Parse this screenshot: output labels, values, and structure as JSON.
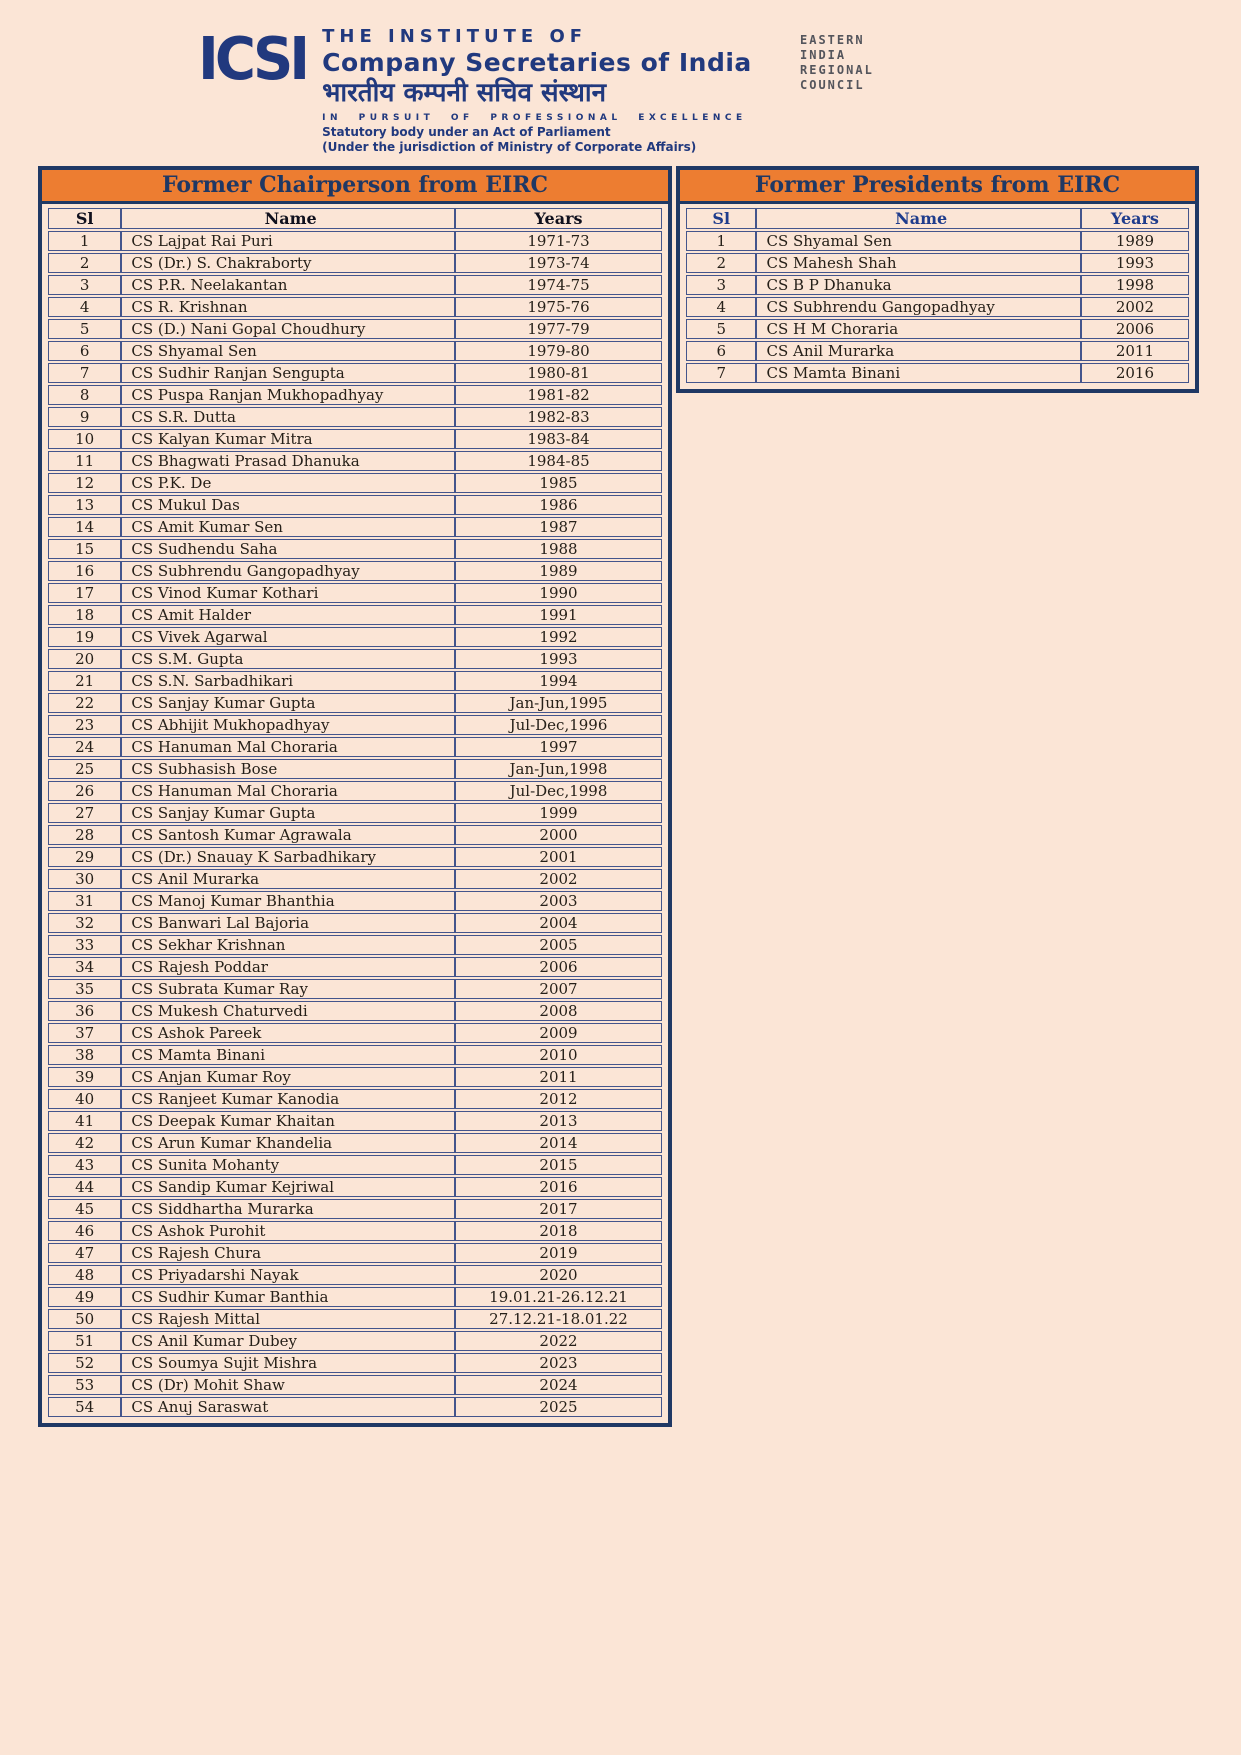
{
  "colors": {
    "page_bg": "#FBE5D6",
    "header_orange": "#ED7D31",
    "navy_border": "#1F3864",
    "cell_border": "#44558C",
    "cell_text": "#262019",
    "council_gray": "#54555C",
    "right_header_blue": "#1F3C8C"
  },
  "header": {
    "logo_text": "ICSI",
    "org_line1": "THE INSTITUTE OF",
    "org_line2": "Company Secretaries of India",
    "org_line3": "भारतीय कम्पनी सचिव संस्थान",
    "motto": "IN PURSUIT OF PROFESSIONAL EXCELLENCE",
    "statutory_line": "Statutory body under an Act of Parliament",
    "jurisdiction_line": "(Under the jurisdiction of Ministry of Corporate Affairs)",
    "council_line1": "EASTERN",
    "council_line2": "INDIA",
    "council_line3": "REGIONAL",
    "council_line4": "COUNCIL"
  },
  "tables": {
    "chairpersons": {
      "title": "Former Chairperson from EIRC",
      "columns": [
        "Sl",
        "Name",
        "Years"
      ],
      "rows": [
        [
          "1",
          "CS Lajpat Rai Puri",
          "1971-73"
        ],
        [
          "2",
          "CS (Dr.) S. Chakraborty",
          "1973-74"
        ],
        [
          "3",
          "CS P.R. Neelakantan",
          "1974-75"
        ],
        [
          "4",
          "CS R. Krishnan",
          "1975-76"
        ],
        [
          "5",
          "CS (D.) Nani Gopal Choudhury",
          "1977-79"
        ],
        [
          "6",
          "CS Shyamal Sen",
          "1979-80"
        ],
        [
          "7",
          "CS Sudhir Ranjan Sengupta",
          "1980-81"
        ],
        [
          "8",
          "CS Puspa Ranjan Mukhopadhyay",
          "1981-82"
        ],
        [
          "9",
          "CS S.R. Dutta",
          "1982-83"
        ],
        [
          "10",
          "CS Kalyan Kumar Mitra",
          "1983-84"
        ],
        [
          "11",
          "CS Bhagwati Prasad Dhanuka",
          "1984-85"
        ],
        [
          "12",
          "CS P.K. De",
          "1985"
        ],
        [
          "13",
          "CS Mukul Das",
          "1986"
        ],
        [
          "14",
          "CS Amit Kumar Sen",
          "1987"
        ],
        [
          "15",
          "CS Sudhendu Saha",
          "1988"
        ],
        [
          "16",
          "CS Subhrendu Gangopadhyay",
          "1989"
        ],
        [
          "17",
          "CS Vinod Kumar Kothari",
          "1990"
        ],
        [
          "18",
          "CS Amit Halder",
          "1991"
        ],
        [
          "19",
          "CS Vivek Agarwal",
          "1992"
        ],
        [
          "20",
          "CS S.M. Gupta",
          "1993"
        ],
        [
          "21",
          "CS S.N. Sarbadhikari",
          "1994"
        ],
        [
          "22",
          "CS Sanjay Kumar Gupta",
          "Jan-Jun,1995"
        ],
        [
          "23",
          "CS Abhijit Mukhopadhyay",
          "Jul-Dec,1996"
        ],
        [
          "24",
          "CS Hanuman Mal Choraria",
          "1997"
        ],
        [
          "25",
          "CS Subhasish Bose",
          "Jan-Jun,1998"
        ],
        [
          "26",
          "CS Hanuman Mal Choraria",
          "Jul-Dec,1998"
        ],
        [
          "27",
          "CS Sanjay Kumar Gupta",
          "1999"
        ],
        [
          "28",
          "CS Santosh Kumar Agrawala",
          "2000"
        ],
        [
          "29",
          "CS (Dr.) Snauay K Sarbadhikary",
          "2001"
        ],
        [
          "30",
          "CS Anil Murarka",
          "2002"
        ],
        [
          "31",
          "CS Manoj Kumar Bhanthia",
          "2003"
        ],
        [
          "32",
          "CS Banwari Lal Bajoria",
          "2004"
        ],
        [
          "33",
          "CS Sekhar Krishnan",
          "2005"
        ],
        [
          "34",
          "CS Rajesh Poddar",
          "2006"
        ],
        [
          "35",
          "CS Subrata Kumar Ray",
          "2007"
        ],
        [
          "36",
          "CS Mukesh Chaturvedi",
          "2008"
        ],
        [
          "37",
          "CS Ashok Pareek",
          "2009"
        ],
        [
          "38",
          "CS Mamta Binani",
          "2010"
        ],
        [
          "39",
          "CS Anjan Kumar Roy",
          "2011"
        ],
        [
          "40",
          "CS Ranjeet Kumar Kanodia",
          "2012"
        ],
        [
          "41",
          "CS Deepak Kumar Khaitan",
          "2013"
        ],
        [
          "42",
          "CS Arun Kumar Khandelia",
          "2014"
        ],
        [
          "43",
          "CS Sunita Mohanty",
          "2015"
        ],
        [
          "44",
          "CS Sandip Kumar Kejriwal",
          "2016"
        ],
        [
          "45",
          "CS Siddhartha Murarka",
          "2017"
        ],
        [
          "46",
          "CS Ashok Purohit",
          "2018"
        ],
        [
          "47",
          "CS Rajesh Chura",
          "2019"
        ],
        [
          "48",
          "CS Priyadarshi Nayak",
          "2020"
        ],
        [
          "49",
          "CS Sudhir Kumar Banthia",
          "19.01.21-26.12.21"
        ],
        [
          "50",
          "CS Rajesh Mittal",
          "27.12.21-18.01.22"
        ],
        [
          "51",
          "CS Anil Kumar Dubey",
          "2022"
        ],
        [
          "52",
          "CS Soumya Sujit Mishra",
          "2023"
        ],
        [
          "53",
          "CS (Dr) Mohit Shaw",
          "2024"
        ],
        [
          "54",
          "CS Anuj Saraswat",
          "2025"
        ]
      ]
    },
    "presidents": {
      "title": "Former Presidents from EIRC",
      "columns": [
        "Sl",
        "Name",
        "Years"
      ],
      "rows": [
        [
          "1",
          "CS Shyamal Sen",
          "1989"
        ],
        [
          "2",
          "CS Mahesh Shah",
          "1993"
        ],
        [
          "3",
          "CS B P Dhanuka",
          "1998"
        ],
        [
          "4",
          "CS Subhrendu Gangopadhyay",
          "2002"
        ],
        [
          "5",
          "CS H M Choraria",
          "2006"
        ],
        [
          "6",
          "CS Anil Murarka",
          "2011"
        ],
        [
          "7",
          "CS Mamta Binani",
          "2016"
        ]
      ]
    }
  }
}
